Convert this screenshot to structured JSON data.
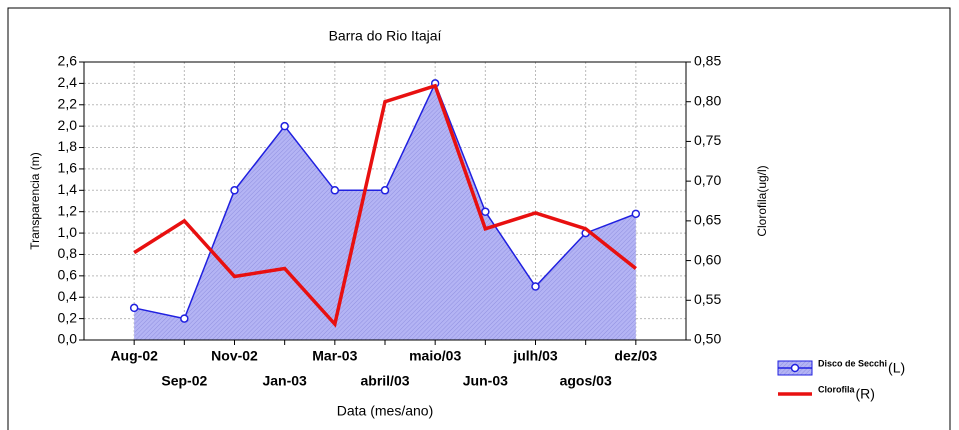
{
  "chart_data": {
    "type": "line",
    "title": "Barra do Rio Itajaí",
    "x_label": "Data (mes/ano)",
    "y_label": "Transparencia (m)",
    "y2_label": "Clorofila(ug/l)",
    "categories": [
      "Aug-02",
      "Sep-02",
      "Nov-02",
      "Jan-03",
      "Mar-03",
      "abril/03",
      "maio/03",
      "Jun-03",
      "julh/03",
      "agos/03",
      "dez/03"
    ],
    "series": [
      {
        "name": "Disco de Secchi",
        "axis_tag": "(L)",
        "color": "#2020e0",
        "fill": "#b4b4f4",
        "axis": "y",
        "values": [
          0.3,
          0.2,
          1.4,
          2.0,
          1.4,
          1.4,
          2.4,
          1.2,
          0.5,
          1.0,
          1.18
        ]
      },
      {
        "name": "Clorofila",
        "axis_tag": "(R)",
        "color": "#e81010",
        "axis": "y2",
        "values": [
          0.61,
          0.65,
          0.58,
          0.59,
          0.52,
          0.8,
          0.82,
          0.64,
          0.66,
          0.64,
          0.59
        ]
      }
    ],
    "ylim": [
      0,
      2.6
    ],
    "yticks": [
      {
        "value": 0,
        "label": "0,0"
      },
      {
        "value": 0.2,
        "label": "0,2"
      },
      {
        "value": 0.4,
        "label": "0,4"
      },
      {
        "value": 0.6,
        "label": "0,6"
      },
      {
        "value": 0.8,
        "label": "0,8"
      },
      {
        "value": 1.0,
        "label": "1,0"
      },
      {
        "value": 1.2,
        "label": "1,2"
      },
      {
        "value": 1.4,
        "label": "1,4"
      },
      {
        "value": 1.6,
        "label": "1,6"
      },
      {
        "value": 1.8,
        "label": "1,8"
      },
      {
        "value": 2.0,
        "label": "2,0"
      },
      {
        "value": 2.2,
        "label": "2,2"
      },
      {
        "value": 2.4,
        "label": "2,4"
      },
      {
        "value": 2.6,
        "label": "2,6"
      }
    ],
    "y2lim": [
      0.5,
      0.85
    ],
    "y2ticks": [
      {
        "value": 0.5,
        "label": "0,50"
      },
      {
        "value": 0.55,
        "label": "0,55"
      },
      {
        "value": 0.6,
        "label": "0,60"
      },
      {
        "value": 0.65,
        "label": "0,65"
      },
      {
        "value": 0.7,
        "label": "0,70"
      },
      {
        "value": 0.75,
        "label": "0,75"
      },
      {
        "value": 0.8,
        "label": "0,80"
      },
      {
        "value": 0.85,
        "label": "0,85"
      }
    ],
    "grid": true,
    "legend": "lower right"
  }
}
